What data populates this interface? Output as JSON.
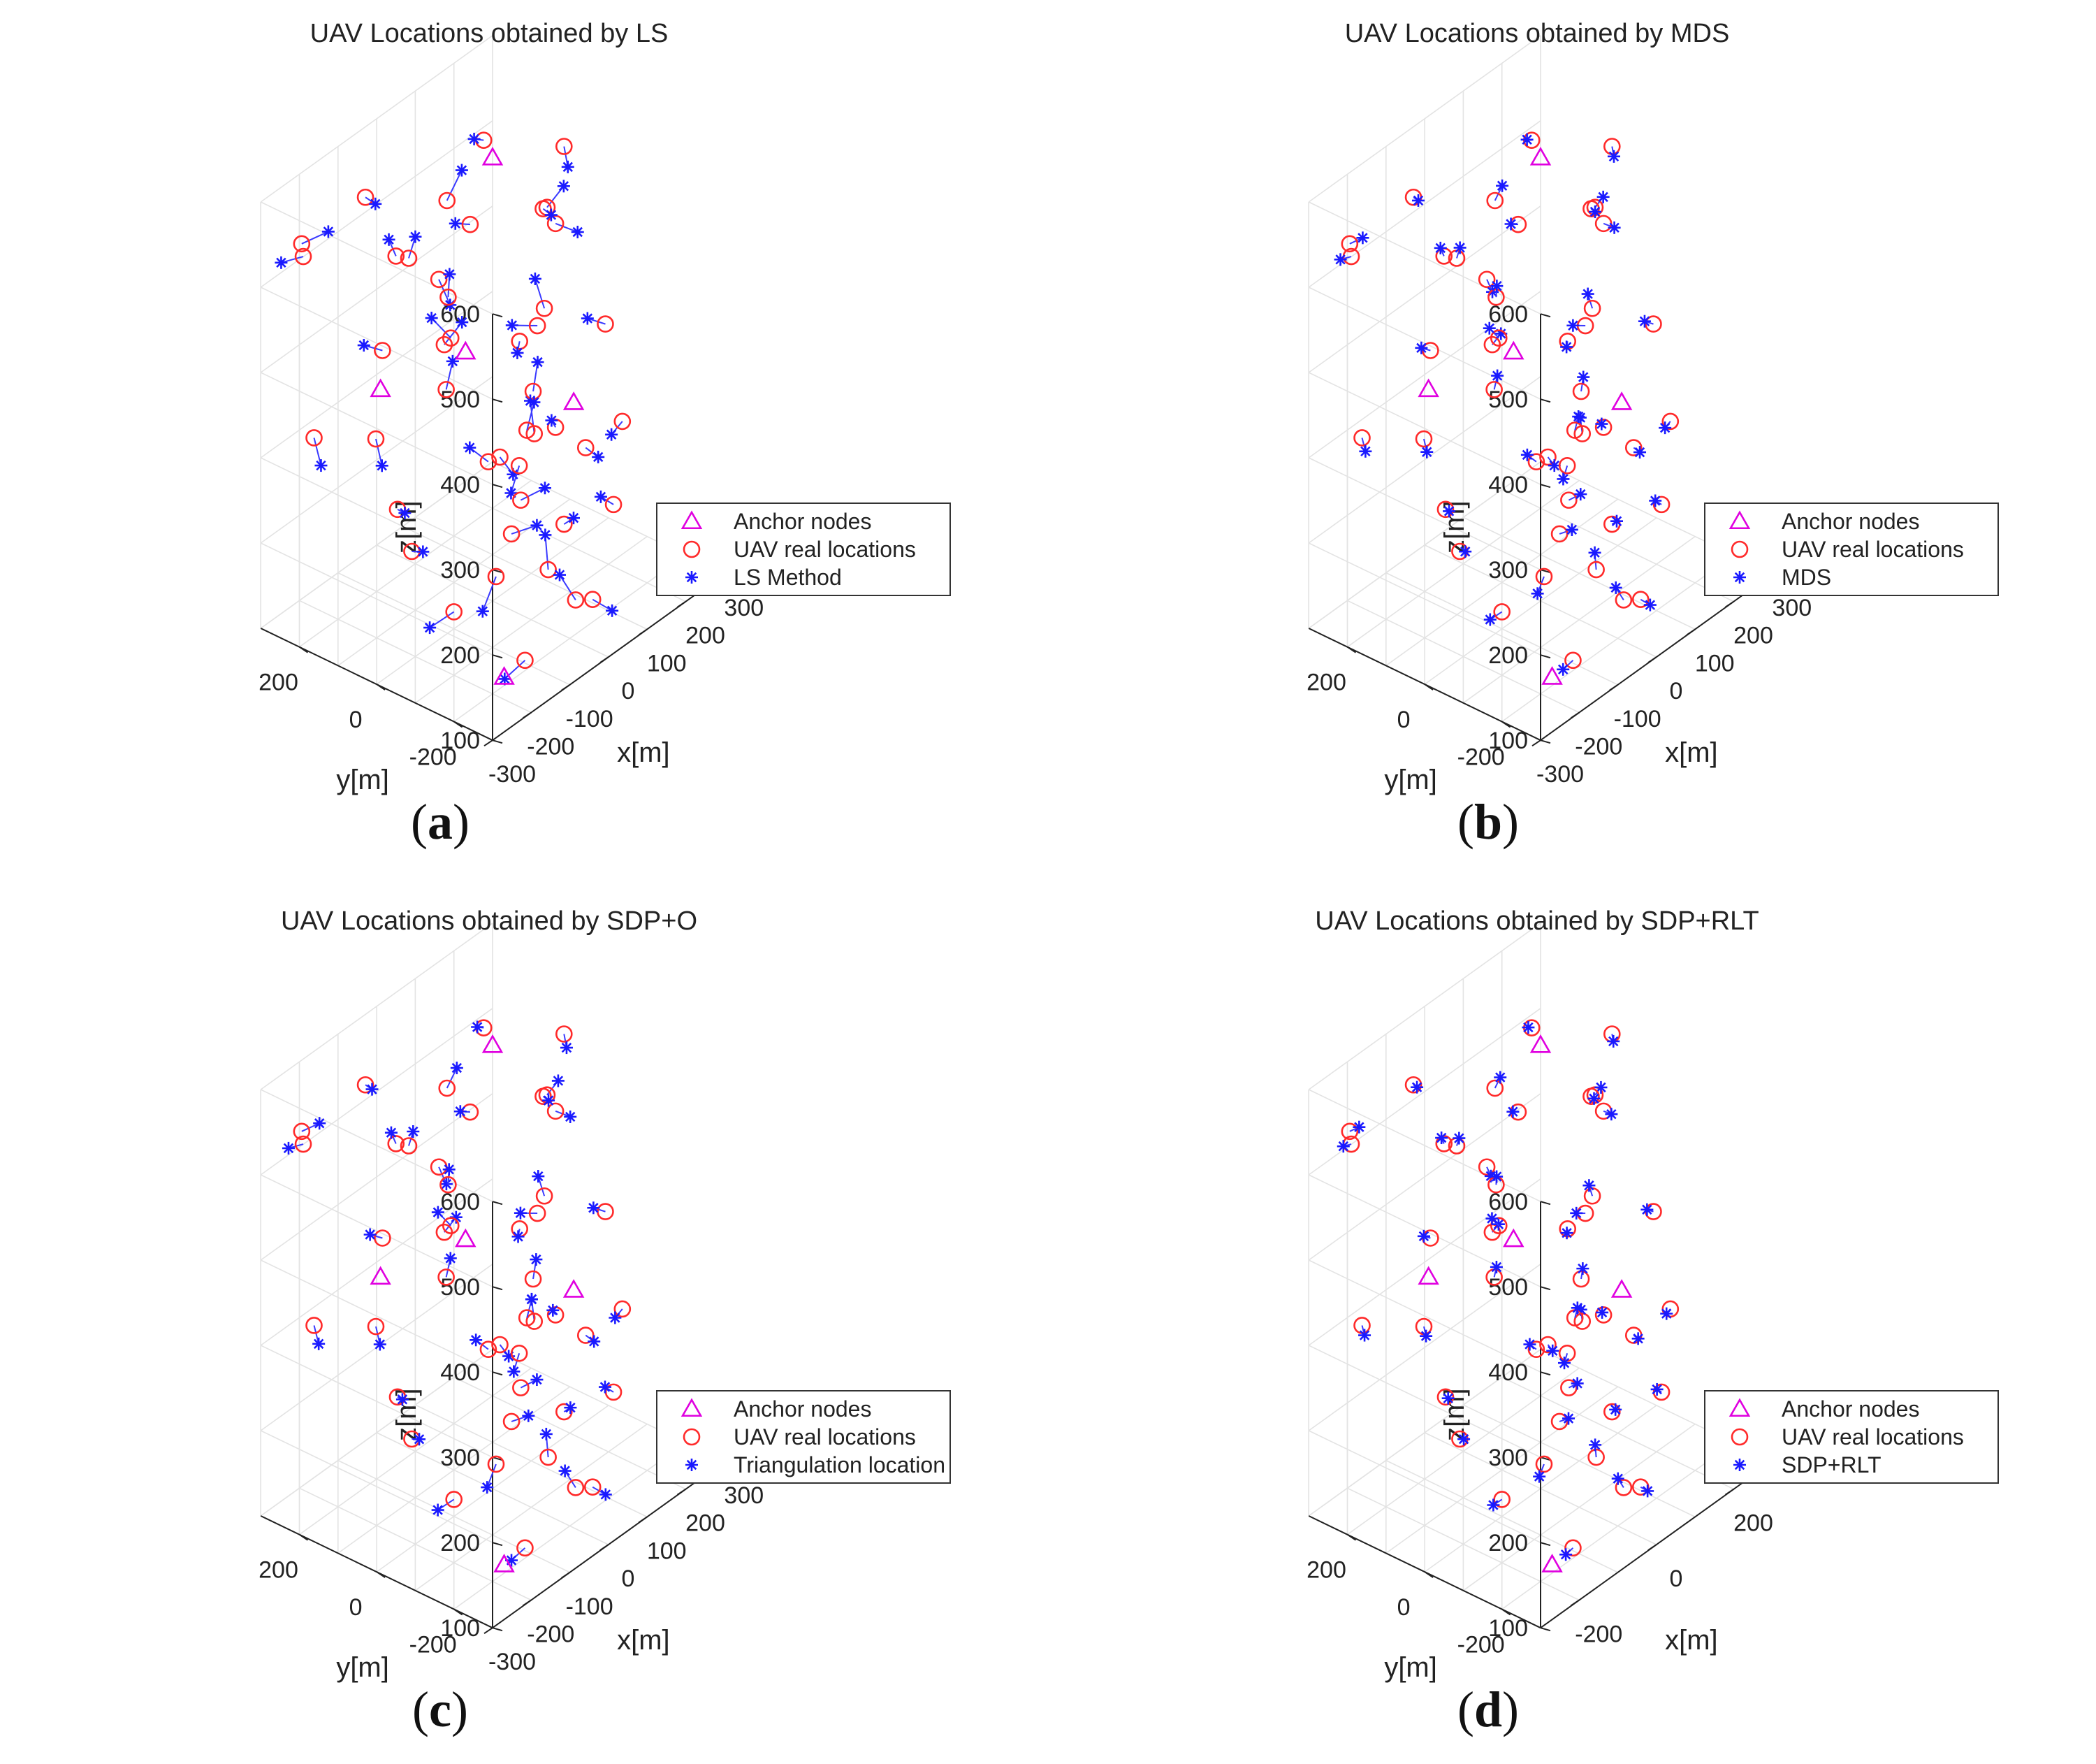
{
  "colors": {
    "anchor": "#e000e0",
    "real": "#ff2a2a",
    "estimate": "#1a1aff",
    "error_line": "#3a3aff",
    "grid": "#e3e3e3",
    "axis": "#222222"
  },
  "chart_data": [
    {
      "type": "scatter",
      "projection": "3d",
      "caption": "a",
      "title": "UAV Locations obtained by LS",
      "xlabel": "x[m]",
      "ylabel": "y[m]",
      "zlabel": "z[m]",
      "xlim": [
        -300,
        300
      ],
      "ylim": [
        -300,
        300
      ],
      "zlim": [
        100,
        600
      ],
      "xticks": [
        "-300",
        "-200",
        "-100",
        "0",
        "100",
        "200",
        "300"
      ],
      "yticks": [
        "200",
        "0",
        "-200"
      ],
      "zticks": [
        "100",
        "200",
        "300",
        "400",
        "500",
        "600"
      ],
      "legend": {
        "position": "bottom-right",
        "entries": [
          "Anchor nodes",
          "UAV real locations",
          "LS Method"
        ]
      },
      "estimate_offset_sigma": 45,
      "anchors": [
        [
          0,
          0,
          620
        ],
        [
          90,
          -120,
          330
        ],
        [
          -230,
          60,
          410
        ],
        [
          160,
          230,
          290
        ],
        [
          -170,
          -200,
          110
        ]
      ]
    },
    {
      "type": "scatter",
      "projection": "3d",
      "caption": "b",
      "title": "UAV Locations obtained by MDS",
      "xlabel": "x[m]",
      "ylabel": "y[m]",
      "zlabel": "z[m]",
      "xlim": [
        -300,
        300
      ],
      "ylim": [
        -300,
        300
      ],
      "zlim": [
        100,
        600
      ],
      "xticks": [
        "-300",
        "-200",
        "-100",
        "0",
        "100",
        "200",
        "300"
      ],
      "yticks": [
        "200",
        "0",
        "-200"
      ],
      "zticks": [
        "100",
        "200",
        "300",
        "400",
        "500",
        "600"
      ],
      "legend": {
        "position": "bottom-right",
        "entries": [
          "Anchor nodes",
          "UAV real locations",
          "MDS"
        ]
      },
      "estimate_offset_sigma": 22,
      "anchors": [
        [
          0,
          0,
          620
        ],
        [
          90,
          -120,
          330
        ],
        [
          -230,
          60,
          410
        ],
        [
          160,
          230,
          290
        ],
        [
          -170,
          -200,
          110
        ]
      ]
    },
    {
      "type": "scatter",
      "projection": "3d",
      "caption": "c",
      "title": "UAV Locations obtained by SDP+O",
      "xlabel": "x[m]",
      "ylabel": "y[m]",
      "zlabel": "z[m]",
      "xlim": [
        -300,
        300
      ],
      "ylim": [
        -300,
        300
      ],
      "zlim": [
        100,
        600
      ],
      "xticks": [
        "-300",
        "-200",
        "-100",
        "0",
        "100",
        "200",
        "300"
      ],
      "yticks": [
        "200",
        "0",
        "-200"
      ],
      "zticks": [
        "100",
        "200",
        "300",
        "400",
        "500",
        "600"
      ],
      "legend": {
        "position": "bottom-right",
        "entries": [
          "Anchor nodes",
          "UAV real locations",
          "Triangulation location"
        ]
      },
      "estimate_offset_sigma": 30,
      "anchors": [
        [
          0,
          0,
          620
        ],
        [
          90,
          -120,
          330
        ],
        [
          -230,
          60,
          410
        ],
        [
          160,
          230,
          290
        ],
        [
          -170,
          -200,
          110
        ]
      ]
    },
    {
      "type": "scatter",
      "projection": "3d",
      "caption": "d",
      "title": "UAV Locations obtained by SDP+RLT",
      "xlabel": "x[m]",
      "ylabel": "y[m]",
      "zlabel": "z[m]",
      "xlim": [
        -300,
        300
      ],
      "ylim": [
        -300,
        300
      ],
      "zlim": [
        100,
        600
      ],
      "xticks": [
        "-200",
        "0",
        "200"
      ],
      "yticks": [
        "200",
        "0",
        "-200"
      ],
      "zticks": [
        "100",
        "200",
        "300",
        "400",
        "500",
        "600"
      ],
      "legend": {
        "position": "bottom-right",
        "entries": [
          "Anchor nodes",
          "UAV real locations",
          "SDP+RLT"
        ]
      },
      "estimate_offset_sigma": 16,
      "anchors": [
        [
          0,
          0,
          620
        ],
        [
          90,
          -120,
          330
        ],
        [
          -230,
          60,
          410
        ],
        [
          160,
          230,
          290
        ],
        [
          -170,
          -200,
          110
        ]
      ]
    }
  ],
  "uav_real_locations": [
    [
      -274,
      220,
      560
    ],
    [
      -241,
      249,
      528
    ],
    [
      -168,
      161,
      593
    ],
    [
      -89,
      128,
      503
    ],
    [
      -26,
      224,
      464
    ],
    [
      -181,
      104,
      430
    ],
    [
      64,
      203,
      412
    ],
    [
      140,
      255,
      355
    ],
    [
      -259,
      43,
      365
    ],
    [
      -150,
      -25,
      455
    ],
    [
      -72,
      36,
      424
    ],
    [
      22,
      80,
      517
    ],
    [
      111,
      134,
      575
    ],
    [
      216,
      75,
      475
    ],
    [
      -227,
      -18,
      236
    ],
    [
      -103,
      -92,
      317
    ],
    [
      -11,
      -30,
      279
    ],
    [
      90,
      20,
      371
    ],
    [
      178,
      70,
      223
    ],
    [
      -238,
      -138,
      195
    ],
    [
      -137,
      -186,
      264
    ],
    [
      -59,
      -128,
      306
    ],
    [
      31,
      -74,
      352
    ],
    [
      157,
      -6,
      254
    ],
    [
      269,
      106,
      432
    ],
    [
      -184,
      -268,
      149
    ],
    [
      -82,
      -226,
      213
    ],
    [
      14,
      -171,
      223
    ],
    [
      115,
      -126,
      270
    ],
    [
      233,
      -59,
      362
    ],
    [
      -140,
      -229,
      396
    ],
    [
      -27,
      -143,
      463
    ],
    [
      73,
      -58,
      549
    ],
    [
      196,
      11,
      567
    ],
    [
      284,
      150,
      318
    ],
    [
      -278,
      -287,
      282
    ],
    [
      -185,
      -258,
      335
    ],
    [
      -49,
      -264,
      175
    ],
    [
      58,
      -201,
      127
    ],
    [
      163,
      -150,
      193
    ],
    [
      254,
      -82,
      246
    ],
    [
      -98,
      148,
      207
    ],
    [
      29,
      149,
      306
    ],
    [
      -196,
      266,
      297
    ],
    [
      121,
      239,
      478
    ]
  ],
  "estimate_offsets": [
    [
      0.61,
      -0.92,
      0.4
    ],
    [
      -0.54,
      0.73,
      -0.18
    ],
    [
      0.88,
      0.31,
      -0.66
    ],
    [
      -0.17,
      -0.55,
      0.92
    ],
    [
      0.45,
      0.86,
      0.12
    ],
    [
      -0.93,
      0.14,
      0.51
    ],
    [
      0.27,
      -0.38,
      -0.84
    ],
    [
      0.72,
      0.64,
      0.28
    ],
    [
      -0.36,
      -0.71,
      -0.53
    ],
    [
      0.94,
      -0.08,
      0.37
    ],
    [
      -0.62,
      0.49,
      0.77
    ],
    [
      0.13,
      0.98,
      -0.29
    ],
    [
      -0.81,
      -0.26,
      0.44
    ],
    [
      0.39,
      -0.57,
      0.69
    ],
    [
      0.86,
      0.22,
      -0.42
    ],
    [
      -0.24,
      0.83,
      0.33
    ],
    [
      0.58,
      -0.18,
      -0.75
    ],
    [
      -0.74,
      -0.61,
      0.09
    ],
    [
      0.19,
      0.42,
      0.88
    ],
    [
      -0.48,
      0.91,
      -0.57
    ],
    [
      0.69,
      -0.77,
      0.21
    ],
    [
      -0.12,
      0.35,
      -0.94
    ],
    [
      0.83,
      0.57,
      0.46
    ],
    [
      -0.66,
      -0.43,
      0.61
    ],
    [
      0.31,
      -0.96,
      -0.14
    ],
    [
      -0.89,
      0.28,
      -0.32
    ],
    [
      0.52,
      0.69,
      0.73
    ],
    [
      -0.29,
      -0.84,
      0.55
    ],
    [
      0.77,
      0.05,
      -0.63
    ],
    [
      -0.41,
      0.62,
      0.18
    ],
    [
      0.08,
      -0.33,
      0.97
    ],
    [
      -0.95,
      0.51,
      0.26
    ],
    [
      0.64,
      0.18,
      -0.51
    ],
    [
      -0.57,
      -0.79,
      -0.22
    ],
    [
      0.35,
      0.88,
      0.58
    ],
    [
      -0.71,
      0.06,
      -0.86
    ],
    [
      0.92,
      -0.47,
      0.15
    ],
    [
      -0.33,
      0.59,
      0.79
    ],
    [
      0.47,
      -0.65,
      -0.38
    ],
    [
      -0.85,
      -0.12,
      0.63
    ],
    [
      0.16,
      0.79,
      -0.71
    ],
    [
      -0.52,
      -0.94,
      0.35
    ],
    [
      0.74,
      0.37,
      0.52
    ],
    [
      -0.18,
      -0.58,
      -0.67
    ],
    [
      0.56,
      -0.29,
      0.84
    ]
  ]
}
